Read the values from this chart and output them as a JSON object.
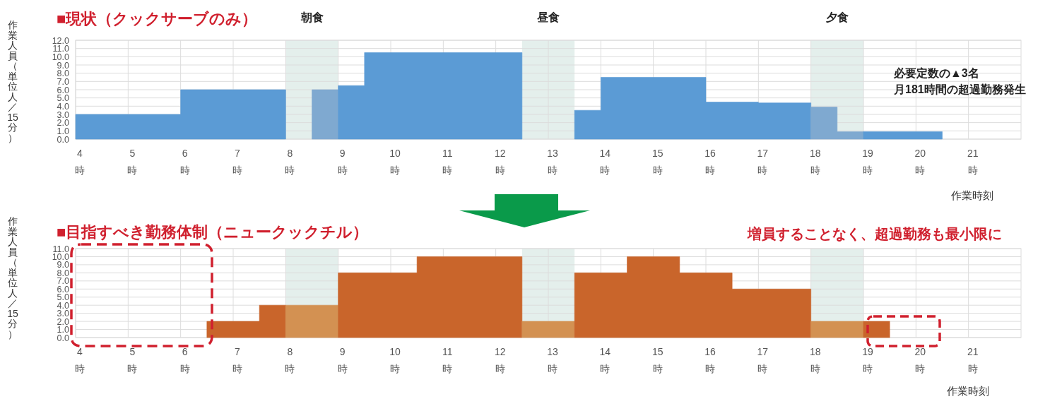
{
  "chart_data": [
    {
      "type": "area",
      "title": "■現状（クックサーブのみ）",
      "ylabel": "作業人員（単位人／15分）",
      "xlabel": "作業時刻",
      "xlim": [
        4,
        22
      ],
      "xticks": [
        {
          "value": 4,
          "label": "4\n時"
        },
        {
          "value": 5,
          "label": "5\n時"
        },
        {
          "value": 6,
          "label": "6\n時"
        },
        {
          "value": 7,
          "label": "7\n時"
        },
        {
          "value": 8,
          "label": "8\n時"
        },
        {
          "value": 9,
          "label": "9\n時"
        },
        {
          "value": 10,
          "label": "10\n時"
        },
        {
          "value": 11,
          "label": "11\n時"
        },
        {
          "value": 12,
          "label": "12\n時"
        },
        {
          "value": 13,
          "label": "13\n時"
        },
        {
          "value": 14,
          "label": "14\n時"
        },
        {
          "value": 15,
          "label": "15\n時"
        },
        {
          "value": 16,
          "label": "16\n時"
        },
        {
          "value": 17,
          "label": "17\n時"
        },
        {
          "value": 18,
          "label": "18\n時"
        },
        {
          "value": 19,
          "label": "19\n時"
        },
        {
          "value": 20,
          "label": "20\n時"
        },
        {
          "value": 21,
          "label": "21\n時"
        }
      ],
      "ylim": [
        0,
        12
      ],
      "yticks": [
        {
          "value": 0,
          "label": "0.0"
        },
        {
          "value": 1,
          "label": "1.0"
        },
        {
          "value": 2,
          "label": "2.0"
        },
        {
          "value": 3,
          "label": "3.0"
        },
        {
          "value": 4,
          "label": "4.0"
        },
        {
          "value": 5,
          "label": "5.0"
        },
        {
          "value": 6,
          "label": "6.0"
        },
        {
          "value": 7,
          "label": "7.0"
        },
        {
          "value": 8,
          "label": "8.0"
        },
        {
          "value": 9,
          "label": "9.0"
        },
        {
          "value": 10,
          "label": "10.0"
        },
        {
          "value": 11,
          "label": "11.0"
        },
        {
          "value": 12,
          "label": "12.0"
        }
      ],
      "grid": true,
      "bands": [
        {
          "axis": "x",
          "from": 8,
          "to": 9,
          "label": "朝食",
          "color": "#e4efec"
        },
        {
          "axis": "x",
          "from": 12.5,
          "to": 13.5,
          "label": "昼食",
          "color": "#e4efec"
        },
        {
          "axis": "x",
          "from": 18,
          "to": 19,
          "label": "夕食",
          "color": "#e4efec"
        }
      ],
      "annotations": [
        "必要定数の▲3名",
        "月181時間の超過勤務発生"
      ],
      "series": [
        {
          "color": "#5b9bd5",
          "x": [
            4,
            6,
            6,
            8
          ],
          "values": [
            3,
            3,
            6,
            6
          ]
        },
        {
          "color": "#7fa9d0",
          "x": [
            8.5,
            9
          ],
          "values": [
            6,
            6
          ]
        },
        {
          "color": "#5b9bd5",
          "x": [
            9,
            9.5,
            9.5,
            12.5
          ],
          "values": [
            6.5,
            6.5,
            10.5,
            10.5
          ]
        },
        {
          "color": "#5b9bd5",
          "x": [
            13.5,
            14,
            14,
            16,
            16,
            17,
            17,
            18
          ],
          "values": [
            3.5,
            3.5,
            7.5,
            7.5,
            4.5,
            4.5,
            4.4,
            4.4
          ]
        },
        {
          "color": "#7fa9d0",
          "x": [
            18,
            18.5,
            18.5,
            19
          ],
          "values": [
            3.9,
            3.9,
            0.9,
            0.9
          ]
        },
        {
          "color": "#5b9bd5",
          "x": [
            19,
            20.5
          ],
          "values": [
            0.9,
            0.9
          ]
        }
      ]
    },
    {
      "type": "area",
      "title": "■目指すべき勤務体制（ニュークックチル）",
      "ylabel": "作業人員（単位人／15分）",
      "xlabel": "作業時刻",
      "xlim": [
        4,
        22
      ],
      "xticks": [
        {
          "value": 4,
          "label": "4\n時"
        },
        {
          "value": 5,
          "label": "5\n時"
        },
        {
          "value": 6,
          "label": "6\n時"
        },
        {
          "value": 7,
          "label": "7\n時"
        },
        {
          "value": 8,
          "label": "8\n時"
        },
        {
          "value": 9,
          "label": "9\n時"
        },
        {
          "value": 10,
          "label": "10\n時"
        },
        {
          "value": 11,
          "label": "11\n時"
        },
        {
          "value": 12,
          "label": "12\n時"
        },
        {
          "value": 13,
          "label": "13\n時"
        },
        {
          "value": 14,
          "label": "14\n時"
        },
        {
          "value": 15,
          "label": "15\n時"
        },
        {
          "value": 16,
          "label": "16\n時"
        },
        {
          "value": 17,
          "label": "17\n時"
        },
        {
          "value": 18,
          "label": "18\n時"
        },
        {
          "value": 19,
          "label": "19\n時"
        },
        {
          "value": 20,
          "label": "20\n時"
        },
        {
          "value": 21,
          "label": "21\n時"
        }
      ],
      "ylim": [
        0,
        11
      ],
      "yticks": [
        {
          "value": 0,
          "label": "0.0"
        },
        {
          "value": 1,
          "label": "1.0"
        },
        {
          "value": 2,
          "label": "2.0"
        },
        {
          "value": 3,
          "label": "3.0"
        },
        {
          "value": 4,
          "label": "4.0"
        },
        {
          "value": 5,
          "label": "5.0"
        },
        {
          "value": 6,
          "label": "6.0"
        },
        {
          "value": 7,
          "label": "7.0"
        },
        {
          "value": 8,
          "label": "8.0"
        },
        {
          "value": 9,
          "label": "9.0"
        },
        {
          "value": 10,
          "label": "10.0"
        },
        {
          "value": 11,
          "label": "11.0"
        }
      ],
      "grid": true,
      "bands": [
        {
          "axis": "x",
          "from": 8,
          "to": 9,
          "color": "#e4efec"
        },
        {
          "axis": "x",
          "from": 12.5,
          "to": 13.5,
          "color": "#e4efec"
        },
        {
          "axis": "x",
          "from": 18,
          "to": 19,
          "color": "#e4efec"
        }
      ],
      "annotations": [
        "増員することなく、超過勤務も最小限に"
      ],
      "series": [
        {
          "color": "#c9652b",
          "x": [
            6.5,
            7.5,
            7.5,
            8
          ],
          "values": [
            2,
            2,
            4,
            4
          ]
        },
        {
          "color": "#d39152",
          "x": [
            8,
            9
          ],
          "values": [
            4,
            4
          ]
        },
        {
          "color": "#c9652b",
          "x": [
            9,
            10.5,
            10.5,
            12.5
          ],
          "values": [
            8,
            8,
            10,
            10
          ]
        },
        {
          "color": "#d39152",
          "x": [
            12.5,
            13.5
          ],
          "values": [
            2,
            2
          ]
        },
        {
          "color": "#c9652b",
          "x": [
            13.5,
            14.5,
            14.5,
            15.5,
            15.5,
            16.5,
            16.5,
            18
          ],
          "values": [
            8,
            8,
            10,
            10,
            8,
            8,
            6,
            6
          ]
        },
        {
          "color": "#d39152",
          "x": [
            18,
            19
          ],
          "values": [
            2,
            2
          ]
        },
        {
          "color": "#c9652b",
          "x": [
            19,
            19.5
          ],
          "values": [
            2,
            2
          ]
        }
      ]
    }
  ]
}
